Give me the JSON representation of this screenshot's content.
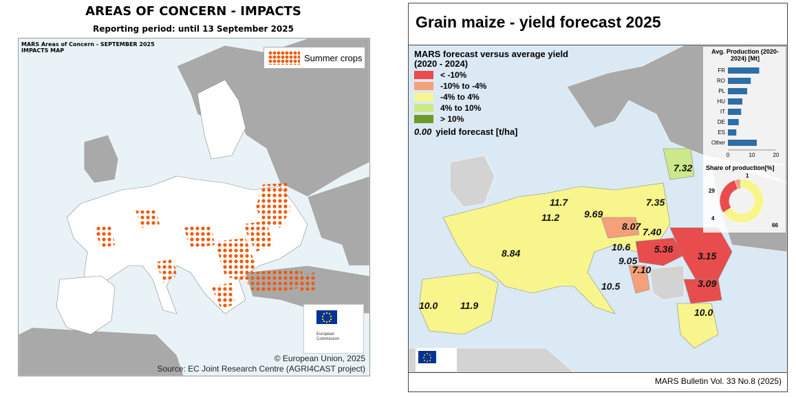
{
  "left": {
    "title": "AREAS OF CONCERN - IMPACTS",
    "subtitle": "Reporting period: until 13 September 2025",
    "map_title_line1": "MARS Areas of Concern - SEPTEMBER 2025",
    "map_title_line2": "IMPACTS MAP",
    "legend_label": "Summer crops",
    "logo_text_1": "European",
    "logo_text_2": "Commission",
    "credit_line1": "© European Union, 2025",
    "credit_line2": "Source: EC Joint Research Centre (AGRI4CAST project)",
    "hatch_color": "#f05a0a"
  },
  "right": {
    "title": "Grain maize - yield forecast 2025",
    "legend_title_1": "MARS forecast versus average yield",
    "legend_title_2": "(2020 - 2024)",
    "legend": [
      {
        "label": "< -10%",
        "color": "#e84c4c"
      },
      {
        "label": "-10% to -4%",
        "color": "#f4a17a"
      },
      {
        "label": "-4% to 4%",
        "color": "#f7f58c"
      },
      {
        "label": "4% to 10%",
        "color": "#cce88a"
      },
      {
        "label": "> 10%",
        "color": "#6e9a2a"
      }
    ],
    "yield_value_sample": "0.00",
    "yield_label": "yield forecast [t/ha]",
    "footer": "MARS Bulletin Vol. 33 No.8 (2025)",
    "yields": [
      {
        "value": "7.32"
      },
      {
        "value": "11.7"
      },
      {
        "value": "9.69"
      },
      {
        "value": "7.35"
      },
      {
        "value": "11.2"
      },
      {
        "value": "8.07"
      },
      {
        "value": "7.40"
      },
      {
        "value": "10.6"
      },
      {
        "value": "5.36"
      },
      {
        "value": "3.15"
      },
      {
        "value": "8.84"
      },
      {
        "value": "9.05"
      },
      {
        "value": "7.10"
      },
      {
        "value": "3.09"
      },
      {
        "value": "10.5"
      },
      {
        "value": "10.0"
      },
      {
        "value": "11.9"
      },
      {
        "value": "10.0"
      }
    ]
  },
  "chart_data": [
    {
      "type": "bar",
      "title": "Avg. Production (2020-2024) [Mt]",
      "categories": [
        "FR",
        "RO",
        "PL",
        "HU",
        "IT",
        "DE",
        "ES",
        "Other"
      ],
      "values": [
        13,
        9.5,
        8,
        6,
        5.5,
        4.5,
        3.5,
        12
      ],
      "xlim": [
        0,
        20
      ],
      "xticks": [
        "0",
        "10",
        "20"
      ],
      "color": "#2e6ea6"
    },
    {
      "type": "pie",
      "title": "Share of production[%]",
      "slices": [
        {
          "value": 66,
          "label": "66",
          "color": "#f7f58c"
        },
        {
          "value": 29,
          "label": "29",
          "color": "#e84c4c"
        },
        {
          "value": 4,
          "label": "4",
          "color": "#f4a17a"
        },
        {
          "value": 1,
          "label": "1",
          "color": "#cce88a"
        }
      ]
    }
  ]
}
